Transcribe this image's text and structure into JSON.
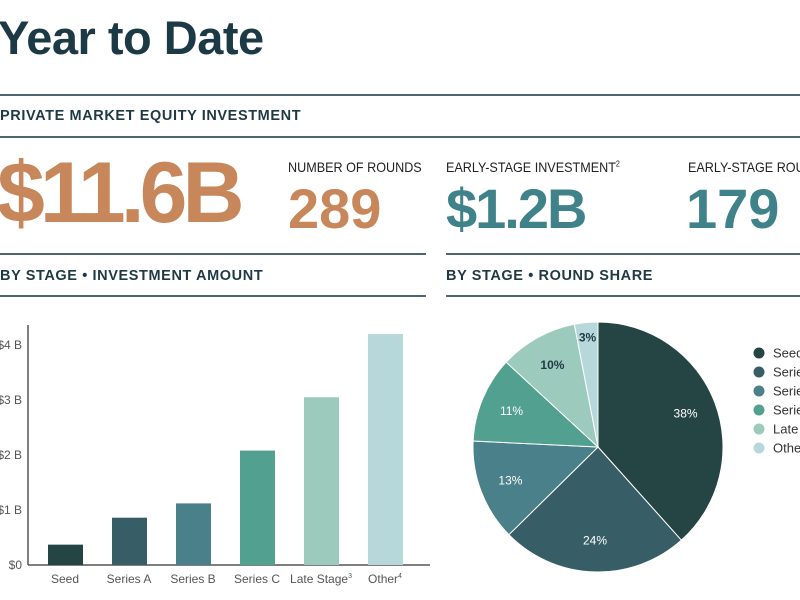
{
  "header": {
    "title": "Year to Date"
  },
  "section_main": "PRIVATE MARKET EQUITY INVESTMENT",
  "kpis": {
    "total": {
      "value": "$11.6B"
    },
    "rounds": {
      "label": "NUMBER OF ROUNDS",
      "value": "289"
    },
    "early_investment": {
      "label": "EARLY-STAGE INVESTMENT",
      "sup": "2",
      "value": "$1.2B"
    },
    "early_rounds": {
      "label": "EARLY-STAGE ROUNDS",
      "value": "179"
    }
  },
  "colors": {
    "orange": "#c8875a",
    "teal": "#3f8289",
    "dark": "#1f3a44"
  },
  "chart_data": [
    {
      "type": "bar",
      "title": "BY STAGE • INVESTMENT AMOUNT",
      "categories": [
        "Seed",
        "Series A",
        "Series B",
        "Series C",
        "Late Stage",
        "Other"
      ],
      "category_sups": [
        "",
        "",
        "",
        "",
        "3",
        "4"
      ],
      "values": [
        0.37,
        0.86,
        1.12,
        2.08,
        3.05,
        4.2
      ],
      "colors": [
        "#254444",
        "#375e66",
        "#4a8089",
        "#52a08f",
        "#9ccabd",
        "#b6d8da"
      ],
      "ylim": [
        0,
        4.2
      ],
      "yticks": [
        0,
        1,
        2,
        3,
        4
      ],
      "ytick_labels": [
        "$0",
        "$1 B",
        "$2 B",
        "$3 B",
        "$4 B"
      ],
      "ylabel": "",
      "xlabel": "",
      "grid": false
    },
    {
      "type": "pie",
      "title": "BY STAGE • ROUND SHARE",
      "labels": [
        "Seed",
        "Series A",
        "Series B",
        "Series C",
        "Late Stage",
        "Other"
      ],
      "values": [
        38,
        24,
        13,
        11,
        10,
        3
      ],
      "value_labels": [
        "38%",
        "24%",
        "13%",
        "11%",
        "10%",
        "3%"
      ],
      "colors": [
        "#254444",
        "#375e66",
        "#4a8089",
        "#52a08f",
        "#9ccabd",
        "#b6d8da"
      ],
      "label_colors": [
        "#fff",
        "#fff",
        "#fff",
        "#fff",
        "#1f3a44",
        "#1f3a44"
      ],
      "legend": "right"
    }
  ]
}
